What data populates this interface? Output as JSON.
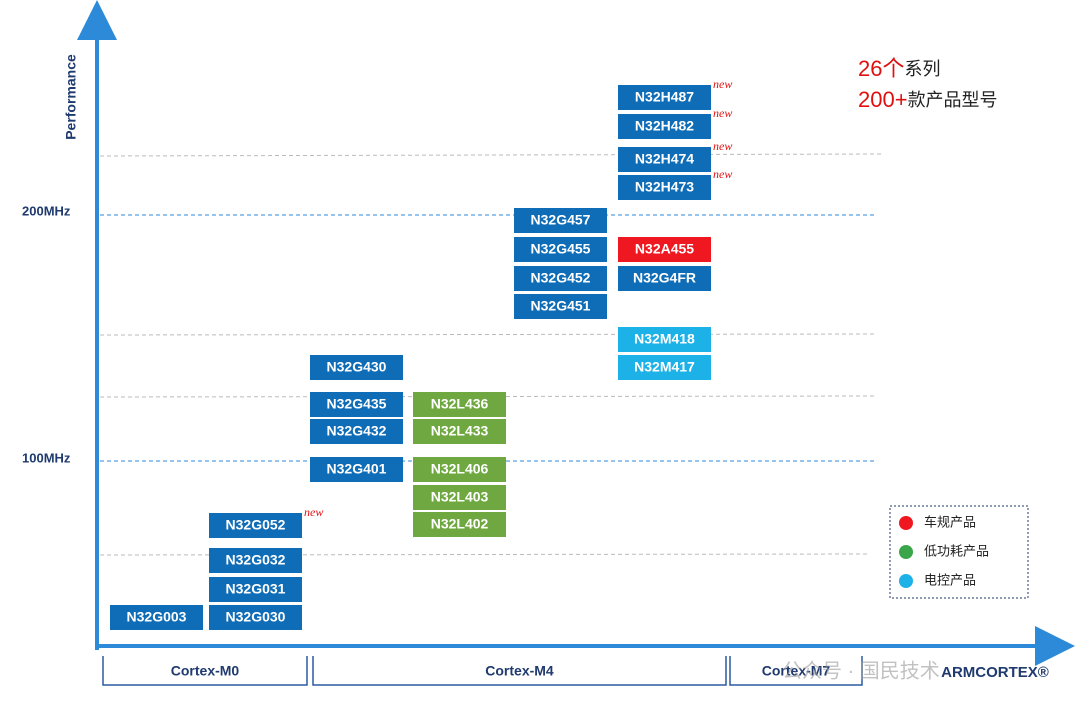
{
  "axis": {
    "y_label": "Performance",
    "ticks": [
      "200MHz",
      "100MHz"
    ]
  },
  "summary": [
    {
      "number": "26个",
      "text": "系列"
    },
    {
      "number": "200+",
      "text": "款产品型号"
    }
  ],
  "products": [
    {
      "label": "N32G003",
      "color": "#0f6cb6"
    },
    {
      "label": "N32G030",
      "color": "#0f6cb6"
    },
    {
      "label": "N32G031",
      "color": "#0f6cb6"
    },
    {
      "label": "N32G032",
      "color": "#0f6cb6"
    },
    {
      "label": "N32G052",
      "color": "#0f6cb6",
      "tag": "new"
    },
    {
      "label": "N32G430",
      "color": "#0f6cb6"
    },
    {
      "label": "N32G435",
      "color": "#0f6cb6"
    },
    {
      "label": "N32G432",
      "color": "#0f6cb6"
    },
    {
      "label": "N32G401",
      "color": "#0f6cb6"
    },
    {
      "label": "N32L436",
      "color": "#6fa840"
    },
    {
      "label": "N32L433",
      "color": "#6fa840"
    },
    {
      "label": "N32L406",
      "color": "#6fa840"
    },
    {
      "label": "N32L403",
      "color": "#6fa840"
    },
    {
      "label": "N32L402",
      "color": "#6fa840"
    },
    {
      "label": "N32G457",
      "color": "#0f6cb6"
    },
    {
      "label": "N32G455",
      "color": "#0f6cb6"
    },
    {
      "label": "N32G452",
      "color": "#0f6cb6"
    },
    {
      "label": "N32G451",
      "color": "#0f6cb6"
    },
    {
      "label": "N32H487",
      "color": "#0f6cb6",
      "tag": "new"
    },
    {
      "label": "N32H482",
      "color": "#0f6cb6",
      "tag": "new"
    },
    {
      "label": "N32H474",
      "color": "#0f6cb6",
      "tag": "new"
    },
    {
      "label": "N32H473",
      "color": "#0f6cb6",
      "tag": "new"
    },
    {
      "label": "N32A455",
      "color": "#f01820"
    },
    {
      "label": "N32G4FR",
      "color": "#0f6cb6"
    },
    {
      "label": "N32M418",
      "color": "#1cb2e8"
    },
    {
      "label": "N32M417",
      "color": "#1cb2e8"
    }
  ],
  "legend": [
    {
      "label": "车规产品",
      "color": "#f01820"
    },
    {
      "label": "低功耗产品",
      "color": "#3aa64a"
    },
    {
      "label": "电控产品",
      "color": "#1cb2e8"
    }
  ],
  "cores": [
    "Cortex-M0",
    "Cortex-M4",
    "Cortex-M7"
  ],
  "watermark": "公众号 · 国民技术",
  "brand": "ARMCORTEX®"
}
